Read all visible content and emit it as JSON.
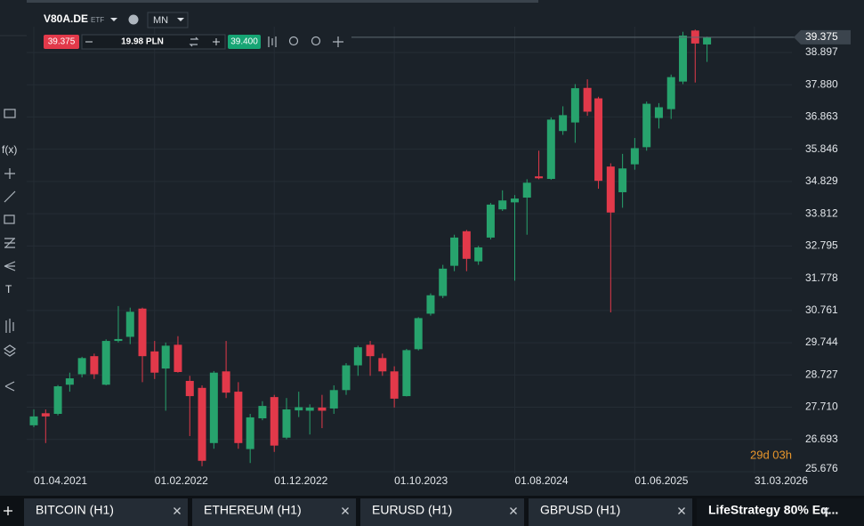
{
  "header": {
    "symbol": "V80A.DE",
    "asset_type": "ETF",
    "interval": "MN",
    "sell_price": "39.375",
    "volume": "19.98 PLN",
    "buy_price": "39.400"
  },
  "toolbar": {
    "function": "f(x)",
    "text_tool": "T"
  },
  "tabs": [
    "BITCOIN (H1)",
    "ETHEREUM (H1)",
    "EURUSD (H1)",
    "GBPUSD (H1)",
    "LifeStrategy 80% Eq..."
  ],
  "chart_data": {
    "type": "candlestick",
    "x": [
      "2021-04-01",
      "2021-05-01",
      "2021-06-01",
      "2021-07-01",
      "2021-08-01",
      "2021-09-01",
      "2021-10-01",
      "2021-11-01",
      "2021-12-01",
      "2022-01-01",
      "2022-02-01",
      "2022-03-01",
      "2022-04-01",
      "2022-05-01",
      "2022-06-01",
      "2022-07-01",
      "2022-08-01",
      "2022-09-01",
      "2022-10-01",
      "2022-11-01",
      "2022-12-01",
      "2023-01-01",
      "2023-02-01",
      "2023-03-01",
      "2023-04-01",
      "2023-05-01",
      "2023-06-01",
      "2023-07-01",
      "2023-08-01",
      "2023-09-01",
      "2023-10-01",
      "2023-11-01",
      "2023-12-01",
      "2024-01-01",
      "2024-02-01",
      "2024-03-01",
      "2024-04-01",
      "2024-05-01",
      "2024-06-01",
      "2024-07-01",
      "2024-08-01",
      "2024-09-01",
      "2024-10-01",
      "2024-11-01",
      "2024-12-01",
      "2025-01-01",
      "2025-02-01",
      "2025-03-01",
      "2025-04-01",
      "2025-05-01",
      "2025-06-01",
      "2025-07-01",
      "2025-08-01",
      "2025-09-01",
      "2025-10-01",
      "2025-11-01",
      "2025-12-01"
    ],
    "open": [
      27.14,
      27.52,
      27.5,
      28.42,
      28.75,
      29.32,
      28.42,
      29.8,
      29.93,
      30.82,
      29.47,
      28.93,
      29.68,
      28.54,
      28.32,
      26.58,
      28.84,
      28.2,
      26.39,
      27.36,
      28.03,
      26.75,
      27.61,
      27.6,
      27.7,
      27.67,
      28.25,
      29.03,
      29.68,
      29.26,
      28.84,
      28.06,
      29.54,
      30.66,
      31.22,
      32.17,
      33.26,
      32.31,
      33.06,
      33.95,
      34.17,
      34.32,
      34.99,
      34.91,
      36.42,
      36.69,
      37.78,
      37.45,
      35.3,
      34.49,
      35.37,
      35.91,
      36.83,
      37.11,
      37.98,
      39.59,
      39.15
    ],
    "high": [
      27.64,
      27.64,
      28.41,
      28.8,
      29.3,
      29.4,
      29.85,
      30.9,
      30.85,
      30.85,
      29.8,
      29.75,
      29.95,
      28.7,
      28.4,
      28.85,
      29.8,
      28.5,
      27.5,
      27.9,
      28.1,
      28.0,
      28.2,
      27.8,
      28.1,
      28.4,
      29.1,
      29.65,
      29.8,
      29.4,
      29.0,
      29.55,
      30.55,
      31.3,
      32.2,
      33.15,
      33.3,
      32.8,
      34.15,
      34.55,
      34.4,
      34.9,
      35.8,
      36.85,
      37.2,
      37.9,
      38.05,
      37.5,
      35.4,
      35.7,
      36.2,
      37.35,
      37.3,
      38.2,
      39.55,
      39.62,
      39.4
    ],
    "low": [
      27.08,
      26.58,
      27.45,
      28.2,
      28.65,
      28.6,
      28.4,
      29.75,
      29.7,
      28.5,
      28.6,
      27.6,
      28.8,
      26.8,
      25.85,
      26.4,
      28.0,
      26.4,
      25.95,
      27.3,
      26.3,
      26.7,
      27.4,
      26.85,
      27.05,
      27.5,
      28.1,
      28.7,
      28.7,
      28.7,
      27.7,
      28.05,
      29.5,
      30.6,
      31.15,
      32.0,
      32.0,
      32.2,
      33.0,
      33.9,
      31.7,
      33.15,
      34.9,
      34.88,
      36.3,
      36.05,
      36.9,
      34.6,
      30.7,
      34.0,
      35.2,
      35.8,
      36.5,
      36.8,
      37.9,
      37.95,
      38.6
    ],
    "close": [
      27.42,
      27.42,
      28.37,
      28.62,
      29.26,
      28.75,
      29.8,
      29.86,
      30.72,
      29.32,
      28.8,
      29.65,
      28.82,
      28.06,
      26.02,
      28.8,
      28.17,
      26.58,
      27.39,
      27.75,
      26.5,
      27.64,
      27.71,
      27.7,
      27.6,
      28.25,
      29.03,
      29.6,
      29.32,
      28.84,
      27.98,
      29.51,
      30.52,
      31.24,
      32.08,
      33.06,
      32.39,
      32.75,
      34.1,
      34.23,
      34.29,
      34.79,
      34.93,
      36.78,
      36.92,
      37.77,
      37.03,
      34.85,
      33.85,
      35.24,
      35.88,
      37.28,
      37.17,
      38.12,
      39.43,
      39.18,
      39.375
    ],
    "up_color": "#27a36d",
    "down_color": "#e2394a",
    "last_price": 39.375,
    "countdown": "29d 03h",
    "xlim": [
      "2021-03-14",
      "2026-07-04"
    ],
    "xticks": [
      {
        "value": "2021-04-01",
        "label": "01.04.2021"
      },
      {
        "value": "2022-02-01",
        "label": "01.02.2022"
      },
      {
        "value": "2022-12-01",
        "label": "01.12.2022"
      },
      {
        "value": "2023-10-01",
        "label": "01.10.2023"
      },
      {
        "value": "2024-08-01",
        "label": "01.08.2024"
      },
      {
        "value": "2025-06-01",
        "label": "01.06.2025"
      },
      {
        "value": "2026-03-31",
        "label": "31.03.2026"
      }
    ],
    "ylim": [
      25.62,
      39.71
    ],
    "yticks": [
      38.897,
      {
        "value": 37.88,
        "label": "37.880"
      },
      36.863,
      35.846,
      34.829,
      33.812,
      32.795,
      31.778,
      30.761,
      29.744,
      28.727,
      {
        "value": 27.71,
        "label": "27.710"
      },
      26.693,
      25.676
    ],
    "grid": true
  }
}
